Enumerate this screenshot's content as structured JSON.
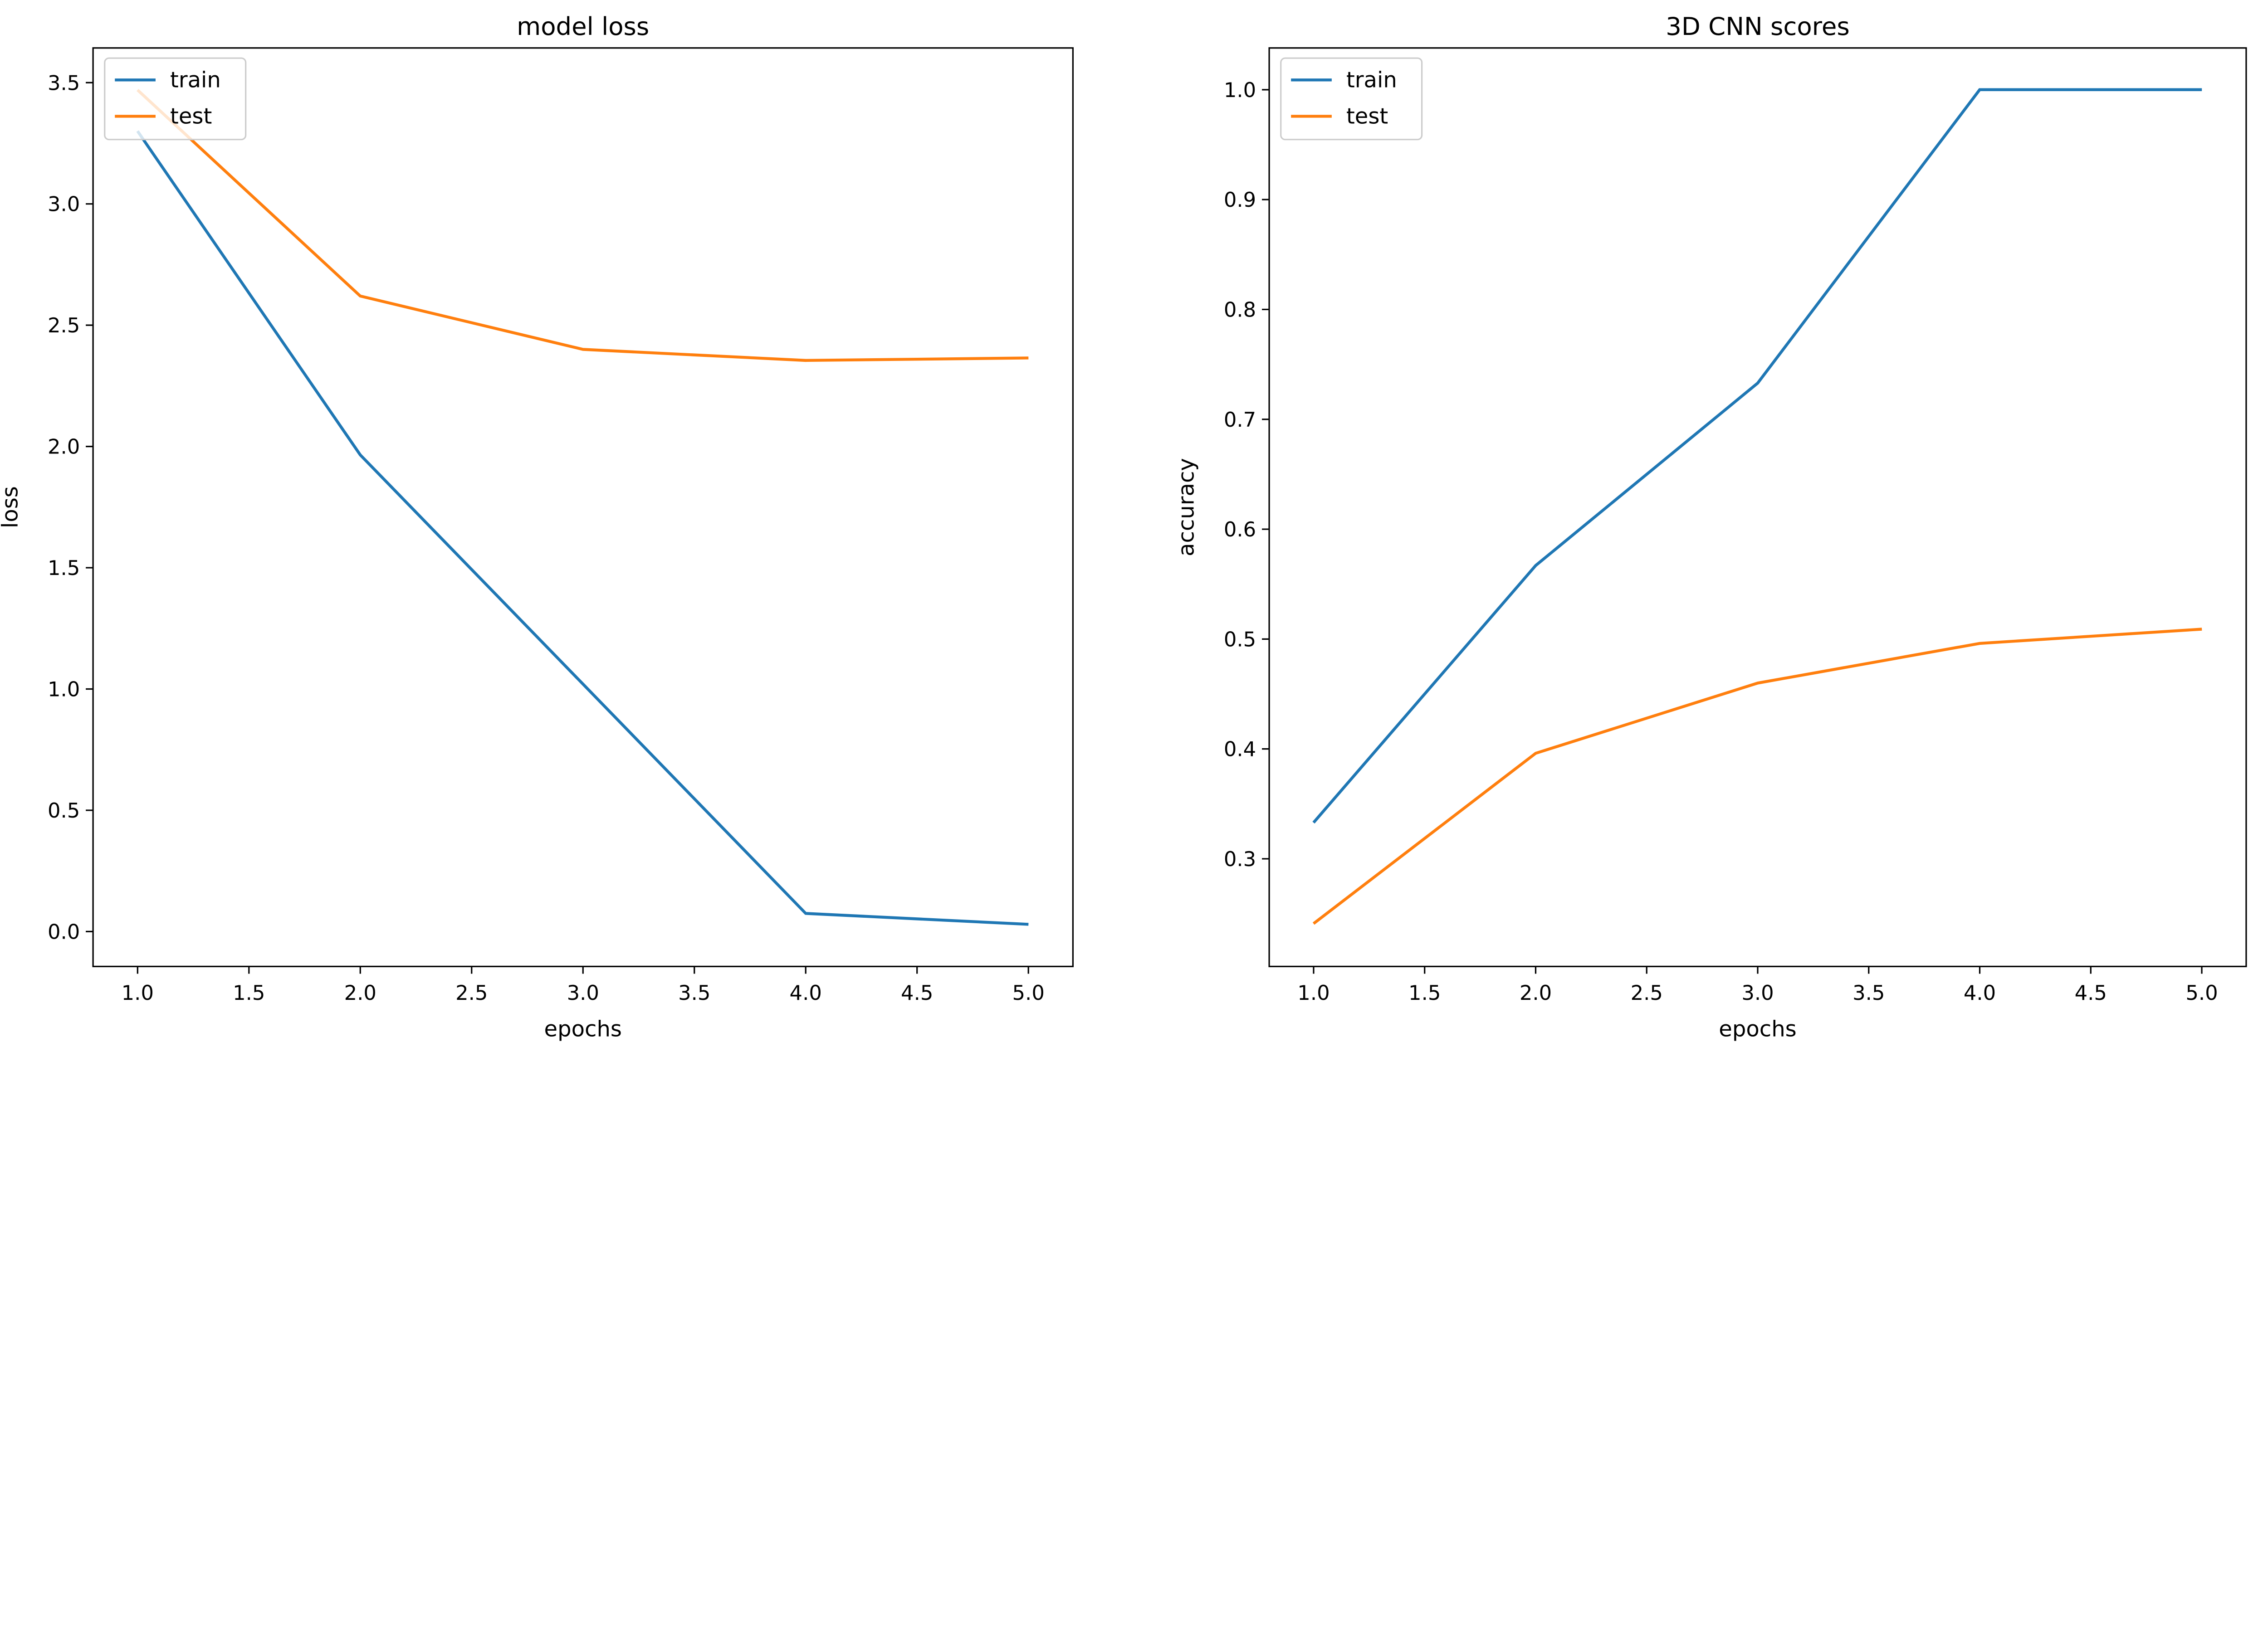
{
  "chart_data": [
    {
      "type": "line",
      "title": "model loss",
      "xlabel": "epochs",
      "ylabel": "loss",
      "xlim": [
        0.8,
        5.2
      ],
      "ylim": [
        -0.144,
        3.643
      ],
      "xticks": [
        1.0,
        1.5,
        2.0,
        2.5,
        3.0,
        3.5,
        4.0,
        4.5,
        5.0
      ],
      "yticks": [
        0.0,
        0.5,
        1.0,
        1.5,
        2.0,
        2.5,
        3.0,
        3.5
      ],
      "grid": false,
      "legend": "upper-left",
      "x": [
        1,
        2,
        3,
        4,
        5
      ],
      "series": [
        {
          "name": "train",
          "color": "#1f77b4",
          "values": [
            3.3,
            1.965,
            1.02,
            0.075,
            0.03
          ]
        },
        {
          "name": "test",
          "color": "#ff7f0e",
          "values": [
            3.47,
            2.62,
            2.4,
            2.355,
            2.365
          ]
        }
      ]
    },
    {
      "type": "line",
      "title": "3D CNN scores",
      "xlabel": "epochs",
      "ylabel": "accuracy",
      "xlim": [
        0.8,
        5.2
      ],
      "ylim": [
        0.202,
        1.038
      ],
      "xticks": [
        1.0,
        1.5,
        2.0,
        2.5,
        3.0,
        3.5,
        4.0,
        4.5,
        5.0
      ],
      "yticks": [
        0.3,
        0.4,
        0.5,
        0.6,
        0.7,
        0.8,
        0.9,
        1.0
      ],
      "grid": false,
      "legend": "upper-left",
      "x": [
        1,
        2,
        3,
        4,
        5
      ],
      "series": [
        {
          "name": "train",
          "color": "#1f77b4",
          "values": [
            0.333,
            0.567,
            0.733,
            1.0,
            1.0
          ]
        },
        {
          "name": "test",
          "color": "#ff7f0e",
          "values": [
            0.241,
            0.396,
            0.46,
            0.496,
            0.509
          ]
        }
      ]
    }
  ]
}
